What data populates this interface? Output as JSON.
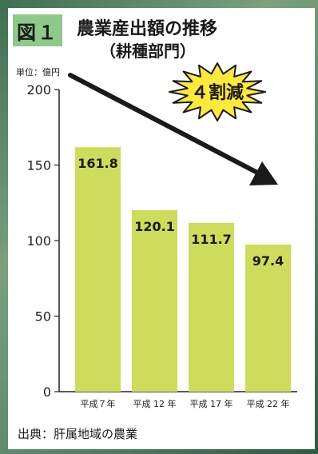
{
  "figure_label": "図１",
  "title": "農業産出額の推移",
  "subtitle": "（耕種部門）",
  "unit": "単位：億円",
  "callout": "４割減",
  "source": "出典：肝属地域の農業",
  "colors": {
    "bar": "#cddc5a",
    "accent": "#8dc98b",
    "burst": "#ffe93a"
  },
  "chart_data": {
    "type": "bar",
    "categories": [
      "平成７年",
      "平成 12 年",
      "平成 17 年",
      "平成 22 年"
    ],
    "values": [
      161.8,
      120.1,
      111.7,
      97.4
    ],
    "value_labels": [
      "161.8",
      "120.1",
      "111.7",
      "97.4"
    ],
    "ylim": [
      0,
      200
    ],
    "yticks": [
      0,
      50,
      100,
      150,
      200
    ],
    "grid": false,
    "annotations": [
      "４割減"
    ]
  }
}
